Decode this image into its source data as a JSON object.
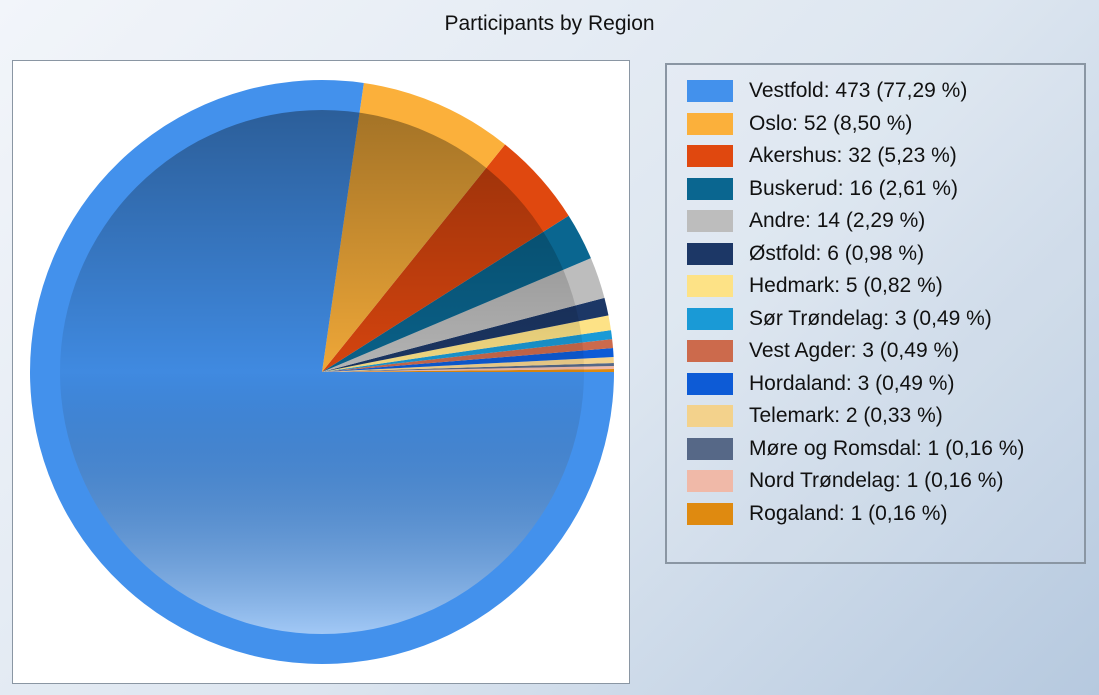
{
  "chart_data": {
    "type": "pie",
    "title": "Participants by Region",
    "categories": [
      "Vestfold: 473 (77,29 %)",
      "Oslo: 52 (8,50 %)",
      "Akershus: 32 (5,23 %)",
      "Buskerud: 16 (2,61 %)",
      "Andre: 14 (2,29 %)",
      "Østfold: 6 (0,98 %)",
      "Hedmark: 5 (0,82 %)",
      "Sør Trøndelag: 3 (0,49 %)",
      "Vest Agder: 3 (0,49 %)",
      "Hordaland: 3 (0,49 %)",
      "Telemark: 2 (0,33 %)",
      "Møre og Romsdal: 1 (0,16 %)",
      "Nord Trøndelag: 1 (0,16 %)",
      "Rogaland: 1 (0,16 %)"
    ],
    "values": [
      473,
      52,
      32,
      16,
      14,
      6,
      5,
      3,
      3,
      3,
      2,
      1,
      1,
      1
    ],
    "colors": [
      "#4391ec",
      "#fbb03b",
      "#e0480f",
      "#0a6690",
      "#bdbdbd",
      "#1c3766",
      "#fde286",
      "#1a9ad6",
      "#cc6a4c",
      "#0d5bd6",
      "#f3d28c",
      "#566887",
      "#f0b9a8",
      "#df8a10"
    ]
  }
}
